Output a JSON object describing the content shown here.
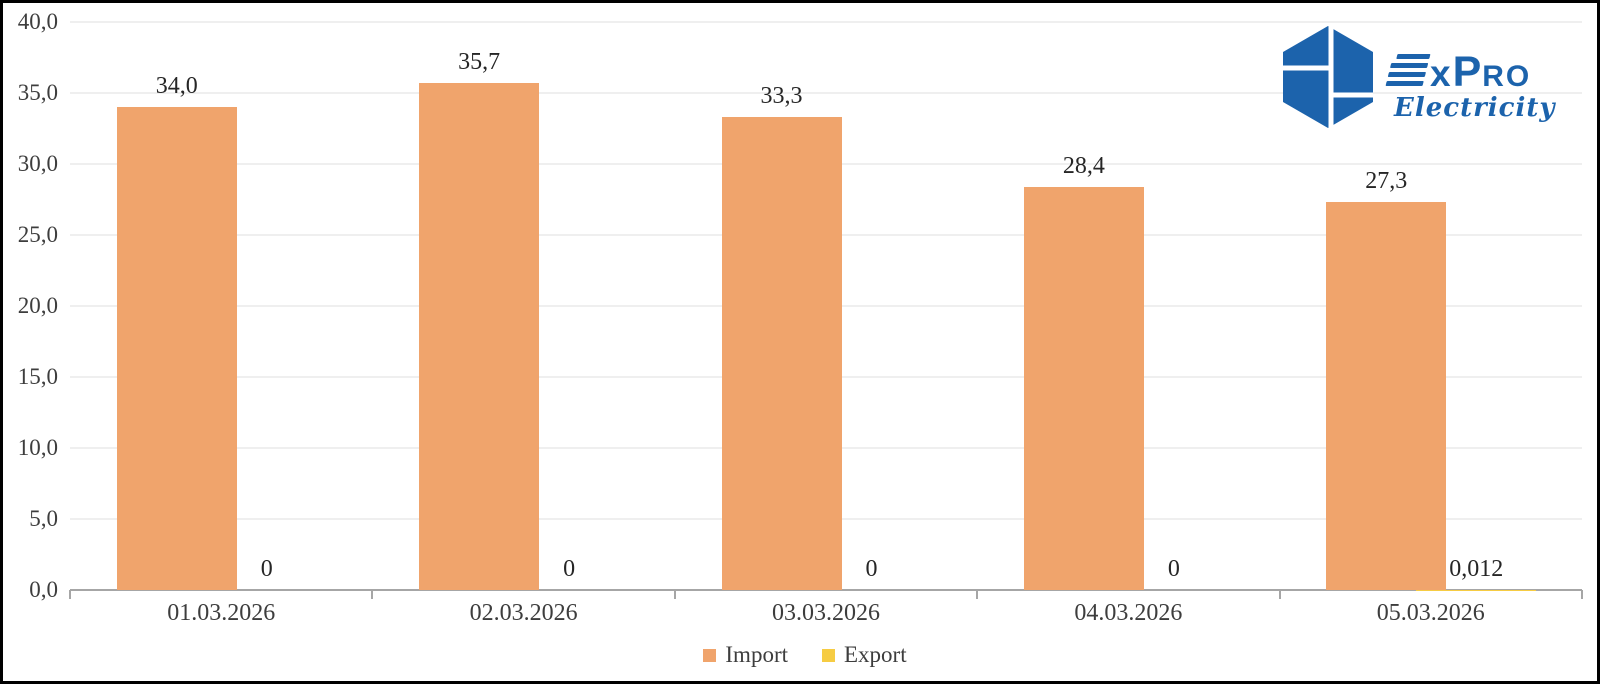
{
  "chart_data": {
    "type": "bar",
    "categories": [
      "01.03.2026",
      "02.03.2026",
      "03.03.2026",
      "04.03.2026",
      "05.03.2026"
    ],
    "series": [
      {
        "name": "Import",
        "color": "#F0A46C",
        "values": [
          34.0,
          35.7,
          33.3,
          28.4,
          27.3
        ],
        "value_labels": [
          "34,0",
          "35,7",
          "33,3",
          "28,4",
          "27,3"
        ]
      },
      {
        "name": "Export",
        "color": "#F6CC43",
        "values": [
          0,
          0,
          0,
          0,
          0.012
        ],
        "value_labels": [
          "0",
          "0",
          "0",
          "0",
          "0,012"
        ]
      }
    ],
    "title": "",
    "xlabel": "",
    "ylabel": "",
    "ylim": [
      0,
      40
    ],
    "ytick_step": 5,
    "ytick_labels": [
      "0,0",
      "5,0",
      "10,0",
      "15,0",
      "20,0",
      "25,0",
      "30,0",
      "35,0",
      "40,0"
    ],
    "decimal_separator": ",",
    "grid": true,
    "legend_position": "bottom-center"
  },
  "logo": {
    "brand": "ExPro",
    "brand_x": "x",
    "brand_p": "P",
    "brand_ro": "RO",
    "tagline": "Electricity",
    "color": "#1C63AC"
  },
  "colors": {
    "background": "#FFFFFF",
    "frame_border": "#000000",
    "axis": "#A6A6A6",
    "gridline": "#EFEFEF",
    "text": "#3D3D3D",
    "import_bar": "#F0A46C",
    "export_bar": "#F6CC43",
    "logo_blue": "#1C63AC"
  }
}
